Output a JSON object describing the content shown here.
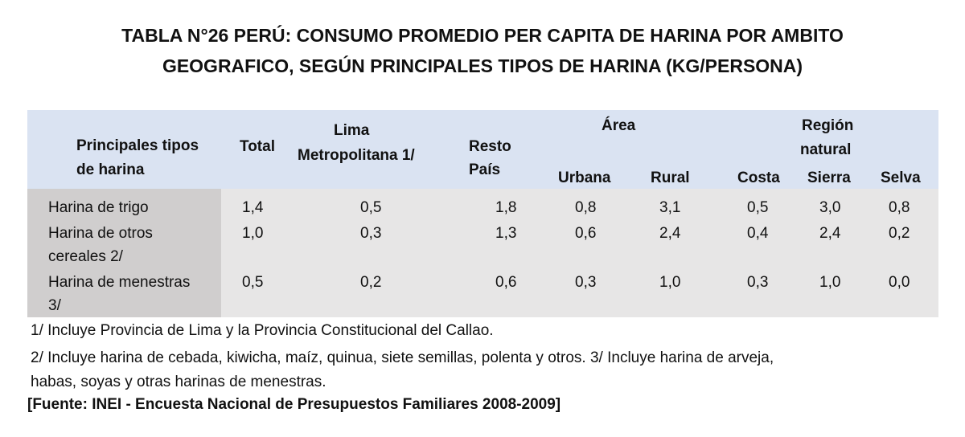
{
  "title": {
    "line1": "TABLA N°26 PERÚ: CONSUMO PROMEDIO PER CAPITA DE HARINA POR AMBITO",
    "line2": "GEOGRAFICO, SEGÚN PRINCIPALES TIPOS DE HARINA (KG/PERSONA)"
  },
  "header": {
    "tipos_line1": "Principales tipos",
    "tipos_line2": "de harina",
    "total": "Total",
    "lima_line1": "Lima",
    "lima_line2": "Metropolitana 1/",
    "resto_line1": "Resto",
    "resto_line2": "País",
    "area": "Área",
    "urbana": "Urbana",
    "rural": "Rural",
    "region_line1": "Región",
    "region_line2": "natural",
    "costa": "Costa",
    "sierra": "Sierra",
    "selva": "Selva"
  },
  "rows": [
    {
      "label1": "Harina de trigo",
      "label2": "",
      "total": "1,4",
      "lima": "0,5",
      "resto": "1,8",
      "urbana": "0,8",
      "rural": "3,1",
      "costa": "0,5",
      "sierra": "3,0",
      "selva": "0,8"
    },
    {
      "label1": "Harina de otros",
      "label2": "cereales 2/",
      "total": "1,0",
      "lima": "0,3",
      "resto": "1,3",
      "urbana": "0,6",
      "rural": "2,4",
      "costa": "0,4",
      "sierra": "2,4",
      "selva": "0,2"
    },
    {
      "label1": "Harina de menestras",
      "label2": "3/",
      "total": "0,5",
      "lima": "0,2",
      "resto": "0,6",
      "urbana": "0,3",
      "rural": "1,0",
      "costa": "0,3",
      "sierra": "1,0",
      "selva": "0,0"
    }
  ],
  "notes": {
    "note1": "1/ Incluye Provincia de Lima y la Provincia Constitucional del Callao.",
    "note2_line1": "2/ Incluye harina de cebada, kiwicha, maíz, quinua, siete semillas, polenta y otros. 3/ Incluye harina de arveja,",
    "note2_line2": "habas, soyas y otras harinas de menestras."
  },
  "source": "[Fuente: INEI - Encuesta Nacional de Presupuestos Familiares 2008-2009]"
}
